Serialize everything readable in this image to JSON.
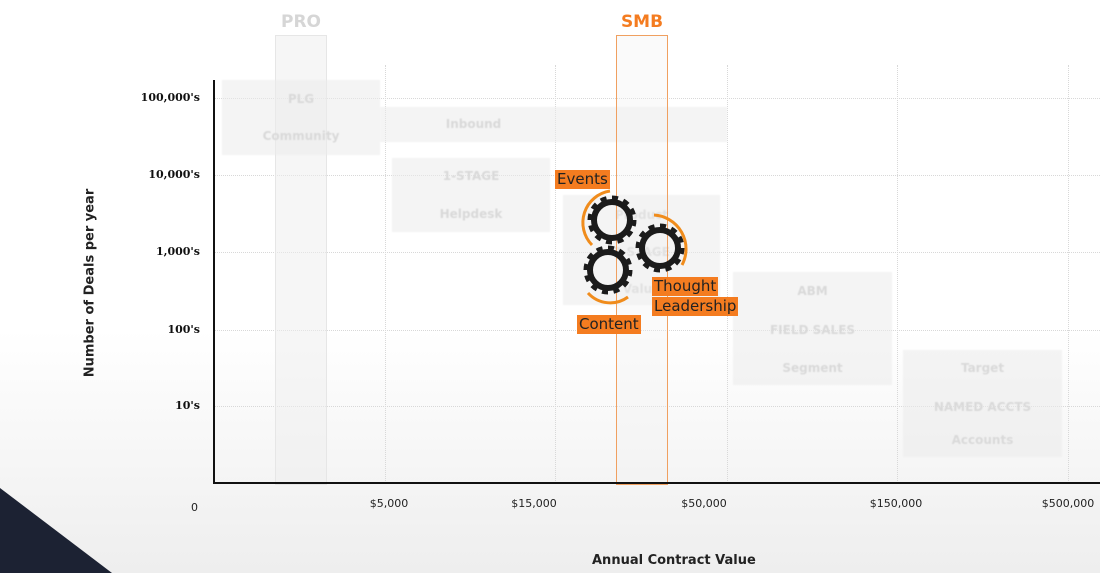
{
  "columns": {
    "pro": "PRO",
    "smb": "SMB"
  },
  "axes": {
    "ylabel": "Number of Deals per year",
    "xlabel": "Annual Contract Value",
    "origin": "0",
    "yticks": [
      "100,000's",
      "10,000's",
      "1,000's",
      "100's",
      "10's"
    ],
    "xticks": [
      "$5,000",
      "$15,000",
      "$50,000",
      "$150,000",
      "$500,000"
    ]
  },
  "boxes": {
    "plg": [
      "PLG",
      "Community"
    ],
    "inbound": [
      "Inbound"
    ],
    "one_stage": [
      "1-STAGE",
      "Helpdesk"
    ],
    "two_stage": [
      "Product",
      "2-STAGE",
      "Value"
    ],
    "field_sales": [
      "ABM",
      "FIELD SALES",
      "Segment"
    ],
    "named_accts": [
      "Target",
      "NAMED ACCTS",
      "Accounts"
    ]
  },
  "tags": {
    "events": "Events",
    "thought": "Thought",
    "leadership": "Leadership",
    "content": "Content"
  },
  "colors": {
    "accent": "#f47c20",
    "navy": "#1c2233"
  }
}
